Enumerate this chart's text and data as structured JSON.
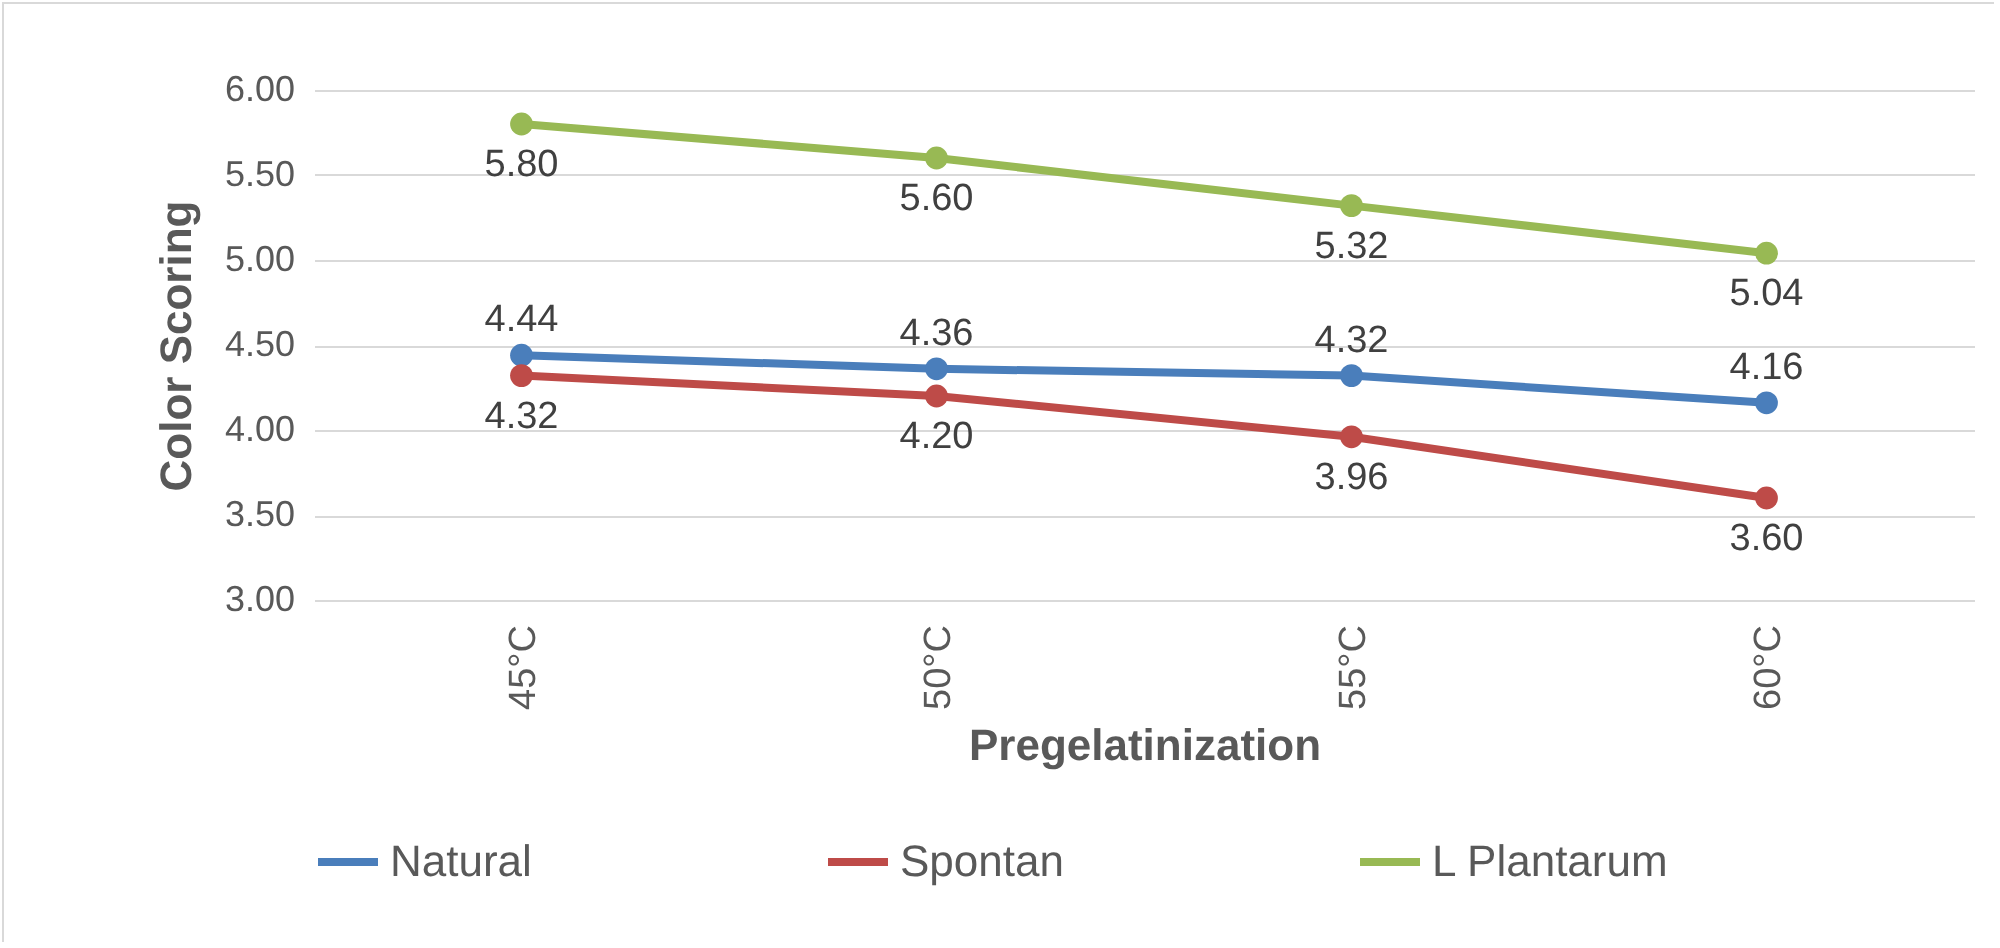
{
  "chart_data": {
    "type": "line",
    "xlabel": "Pregelatinization",
    "ylabel": "Color Scoring",
    "categories": [
      "45°C",
      "50°C",
      "55°C",
      "60°C"
    ],
    "series": [
      {
        "name": "Natural",
        "color": "#4a7ebb",
        "values": [
          4.44,
          4.36,
          4.32,
          4.16
        ],
        "value_labels": [
          "4.44",
          "4.36",
          "4.32",
          "4.16"
        ]
      },
      {
        "name": "Spontan",
        "color": "#be4b48",
        "values": [
          4.32,
          4.2,
          3.96,
          3.6
        ],
        "value_labels": [
          "4.32",
          "4.20",
          "3.96",
          "3.60"
        ]
      },
      {
        "name": "L Plantarum",
        "color": "#98b954",
        "values": [
          5.8,
          5.6,
          5.32,
          5.04
        ],
        "value_labels": [
          "5.80",
          "5.60",
          "5.32",
          "5.04"
        ]
      }
    ],
    "ylim": [
      3,
      6
    ],
    "yticks": [
      {
        "value": 3,
        "label": "3.00"
      },
      {
        "value": 3.5,
        "label": "3.50"
      },
      {
        "value": 4,
        "label": "4.00"
      },
      {
        "value": 4.5,
        "label": "4.50"
      },
      {
        "value": 5,
        "label": "5.00"
      },
      {
        "value": 5.5,
        "label": "5.50"
      },
      {
        "value": 6,
        "label": "6.00"
      }
    ],
    "grid": "y",
    "legend": "bottom",
    "marker": "circle",
    "line_style": "solid"
  }
}
